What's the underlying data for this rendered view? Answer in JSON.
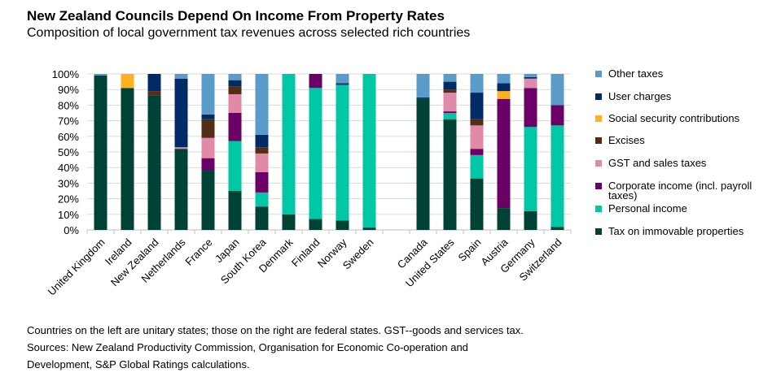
{
  "chart_data": {
    "type": "bar",
    "stacked": true,
    "title": "New Zealand Councils Depend On Income From Property Rates",
    "subtitle": "Composition of local government tax revenues across selected rich countries",
    "ylim": [
      0,
      100
    ],
    "yticks": [
      "0%",
      "10%",
      "20%",
      "30%",
      "40%",
      "50%",
      "60%",
      "70%",
      "80%",
      "90%",
      "100%"
    ],
    "grid": true,
    "legend_position": "right",
    "categories": [
      "United Kingdom",
      "Ireland",
      "New Zealand",
      "Netherlands",
      "France",
      "Japan",
      "South Korea",
      "Denmark",
      "Finland",
      "Norway",
      "Sweden",
      "",
      "Canada",
      "United States",
      "Spain",
      "Austria",
      "Germany",
      "Switzerland"
    ],
    "series": [
      {
        "name": "Tax on immovable properties",
        "color": "#004236",
        "values": [
          99,
          91,
          86,
          52,
          38,
          25,
          15,
          10,
          7,
          6,
          1.5,
          null,
          84,
          71,
          33,
          14,
          12,
          2
        ]
      },
      {
        "name": "Personal income",
        "color": "#00C7A6",
        "values": [
          0,
          0,
          0,
          0,
          0,
          32,
          9,
          90,
          84,
          87,
          98.5,
          null,
          0,
          4,
          15,
          0,
          54,
          65
        ]
      },
      {
        "name": "Corporate income (incl. payroll taxes)",
        "color": "#6B0066",
        "values": [
          0,
          0,
          0,
          0,
          8,
          18,
          13,
          0,
          9,
          0,
          0,
          null,
          0,
          1,
          4,
          70,
          25,
          13
        ]
      },
      {
        "name": "GST and sales taxes",
        "color": "#E089A8",
        "values": [
          0,
          0,
          0,
          1,
          13,
          12,
          12,
          0,
          0,
          0,
          0,
          null,
          0,
          12,
          15,
          0,
          6,
          0
        ]
      },
      {
        "name": "Excises",
        "color": "#532D14",
        "values": [
          0,
          0,
          3,
          0,
          12,
          5,
          4,
          0,
          0,
          0,
          0,
          null,
          0,
          2,
          4,
          0,
          0,
          0
        ]
      },
      {
        "name": "Social security contributions",
        "color": "#FFB01F",
        "values": [
          0,
          9,
          0,
          0,
          0,
          0,
          0,
          0,
          0,
          0,
          0,
          null,
          0,
          0,
          0,
          5,
          0,
          0
        ]
      },
      {
        "name": "User charges",
        "color": "#002B66",
        "values": [
          0,
          0,
          11,
          44,
          3,
          4,
          8,
          0,
          0,
          1,
          0,
          null,
          1,
          5,
          17,
          5,
          1,
          0
        ]
      },
      {
        "name": "Other taxes",
        "color": "#5B9BC9",
        "values": [
          1,
          0,
          0,
          3,
          26,
          4,
          39,
          0,
          0,
          6,
          0,
          null,
          15,
          5,
          12,
          6,
          2,
          20
        ]
      }
    ]
  },
  "notes": [
    "Countries on the left are unitary states; those on the right are federal states. GST--goods and services tax.",
    "Sources: New Zealand Productivity Commission, Organisation for Economic Co-operation and",
    "Development, S&P Global Ratings calculations."
  ]
}
